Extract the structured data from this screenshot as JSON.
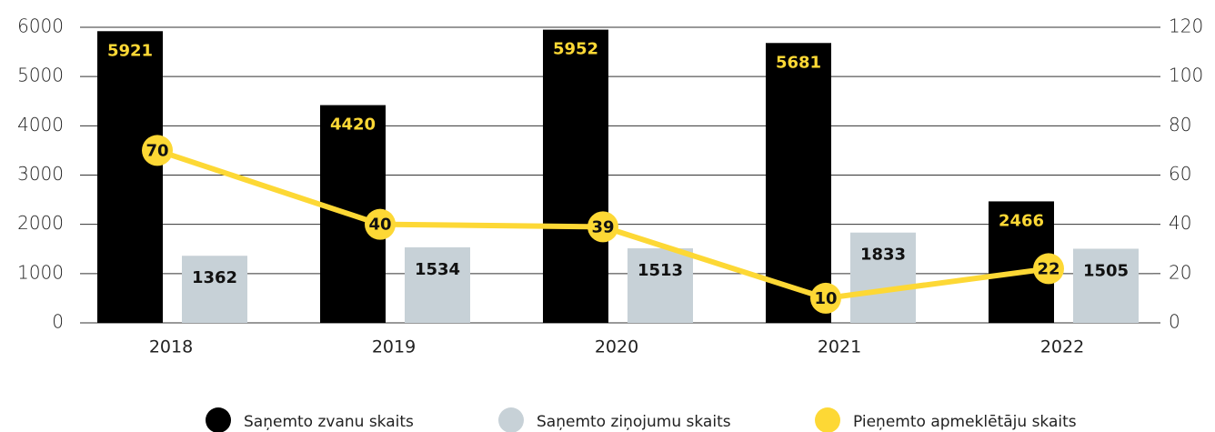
{
  "chart_data": {
    "type": "bar",
    "categories": [
      "2018",
      "2019",
      "2020",
      "2021",
      "2022"
    ],
    "series": [
      {
        "name": "Saņemto zvanu skaits",
        "color": "#000000",
        "values": [
          5921,
          4420,
          5952,
          5681,
          2466
        ]
      },
      {
        "name": "Saņemto ziņojumu skaits",
        "color": "#c7d1d7",
        "values": [
          1362,
          1534,
          1513,
          1833,
          1505
        ]
      },
      {
        "name": "Pieņemto apmeklētāju skaits",
        "color": "#fdd835",
        "type": "line",
        "axis": "y2",
        "values": [
          70,
          40,
          39,
          10,
          22
        ]
      }
    ],
    "ylim": [
      0,
      6000
    ],
    "yticks": [
      0,
      1000,
      2000,
      3000,
      4000,
      5000,
      6000
    ],
    "y2lim": [
      0,
      120
    ],
    "y2ticks": [
      0,
      20,
      40,
      60,
      80,
      100,
      120
    ],
    "grid": true,
    "legend": "bottom"
  }
}
